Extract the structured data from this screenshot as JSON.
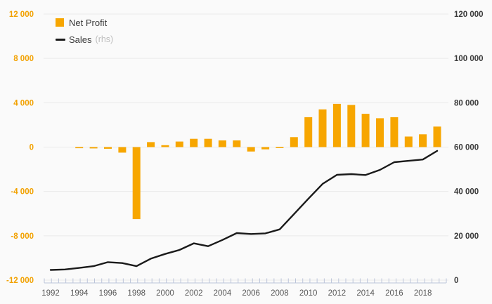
{
  "chart_data": {
    "type": "bar",
    "title": "",
    "x": [
      1992,
      1993,
      1994,
      1995,
      1996,
      1997,
      1998,
      1999,
      2000,
      2001,
      2002,
      2003,
      2004,
      2005,
      2006,
      2007,
      2008,
      2009,
      2010,
      2011,
      2012,
      2013,
      2014,
      2015,
      2016,
      2017,
      2018,
      2019
    ],
    "series": [
      {
        "name": "Net Profit",
        "type": "bar",
        "axis": "left",
        "color": "#F7A600",
        "values": [
          null,
          null,
          -100,
          -120,
          -150,
          -500,
          -6500,
          450,
          170,
          500,
          750,
          750,
          600,
          600,
          -400,
          -200,
          -80,
          900,
          2700,
          3400,
          3900,
          3800,
          3000,
          2600,
          2700,
          950,
          1150,
          1850
        ]
      },
      {
        "name": "Sales",
        "type": "line",
        "axis": "right",
        "suffix": "(rhs)",
        "color": "#1A1A1A",
        "values": [
          4600,
          4800,
          5500,
          6300,
          8100,
          7700,
          6300,
          9700,
          11800,
          13600,
          16600,
          15300,
          18100,
          21200,
          20800,
          21100,
          22900,
          29800,
          36700,
          43400,
          47500,
          47800,
          47400,
          49700,
          53200,
          53800,
          54400,
          58300
        ]
      }
    ],
    "left_axis": {
      "min": -12000,
      "max": 12000,
      "tick_step": 4000,
      "tick_labels": [
        "12 000",
        "8 000",
        "4 000",
        "0",
        "-4 000",
        "-8 000",
        "-12 000"
      ]
    },
    "right_axis": {
      "min": 0,
      "max": 120000,
      "tick_step": 20000,
      "tick_labels": [
        "120 000",
        "100 000",
        "80 000",
        "60 000",
        "40 000",
        "20 000",
        "0"
      ]
    },
    "x_axis": {
      "label_years": [
        1992,
        1994,
        1996,
        1998,
        2000,
        2002,
        2004,
        2006,
        2008,
        2010,
        2012,
        2014,
        2016,
        2018
      ],
      "labels": [
        "1992",
        "1994",
        "1996",
        "1998",
        "2000",
        "2002",
        "2004",
        "2006",
        "2008",
        "2010",
        "2012",
        "2014",
        "2016",
        "2018"
      ]
    },
    "grid": true,
    "legend_position": "top-left"
  },
  "legend": {
    "items": [
      {
        "label": "Net Profit"
      },
      {
        "label": "Sales",
        "suffix": "(rhs)"
      }
    ]
  },
  "colors": {
    "background": "#FAFAFA",
    "gridline": "#E9E9E9",
    "axis_line": "#BCC5DA",
    "bar": "#F7A600",
    "line": "#1A1A1A",
    "left_labels": "#F2A100",
    "right_labels": "#3A3A3A",
    "x_labels": "#595959"
  }
}
